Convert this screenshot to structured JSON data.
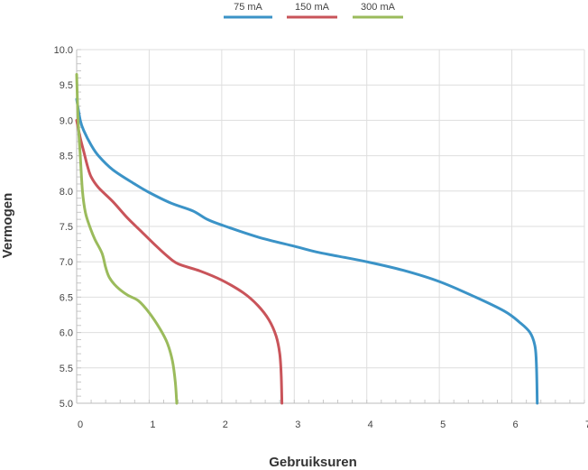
{
  "chart_data": {
    "type": "line",
    "title": "",
    "xlabel": "Gebruiksuren",
    "ylabel": "Vermogen",
    "xlim": [
      0,
      7
    ],
    "ylim": [
      5.0,
      10.0
    ],
    "x_ticks": [
      "0",
      "1",
      "2",
      "3",
      "4",
      "5",
      "6",
      "7"
    ],
    "y_ticks": [
      "5.0",
      "5.5",
      "6.0",
      "6.5",
      "7.0",
      "7.5",
      "8.0",
      "8.5",
      "9.0",
      "9.5",
      "10.0"
    ],
    "grid": true,
    "legend_position": "top-center",
    "series": [
      {
        "name": "75 mA",
        "color": "#3b93c7",
        "points": [
          [
            0,
            9.3
          ],
          [
            0.05,
            9.0
          ],
          [
            0.1,
            8.85
          ],
          [
            0.2,
            8.65
          ],
          [
            0.3,
            8.5
          ],
          [
            0.5,
            8.3
          ],
          [
            0.8,
            8.1
          ],
          [
            1.0,
            7.98
          ],
          [
            1.3,
            7.83
          ],
          [
            1.6,
            7.72
          ],
          [
            1.8,
            7.6
          ],
          [
            2.0,
            7.52
          ],
          [
            2.5,
            7.35
          ],
          [
            3.0,
            7.22
          ],
          [
            3.3,
            7.14
          ],
          [
            3.6,
            7.08
          ],
          [
            4.0,
            7.0
          ],
          [
            4.5,
            6.88
          ],
          [
            5.0,
            6.72
          ],
          [
            5.5,
            6.5
          ],
          [
            5.9,
            6.3
          ],
          [
            6.1,
            6.15
          ],
          [
            6.25,
            6.0
          ],
          [
            6.32,
            5.8
          ],
          [
            6.34,
            5.5
          ],
          [
            6.35,
            5.0
          ]
        ]
      },
      {
        "name": "150 mA",
        "color": "#c9545a",
        "points": [
          [
            0,
            9.0
          ],
          [
            0.05,
            8.75
          ],
          [
            0.1,
            8.55
          ],
          [
            0.15,
            8.35
          ],
          [
            0.2,
            8.2
          ],
          [
            0.3,
            8.05
          ],
          [
            0.5,
            7.85
          ],
          [
            0.7,
            7.62
          ],
          [
            0.9,
            7.42
          ],
          [
            1.1,
            7.22
          ],
          [
            1.25,
            7.08
          ],
          [
            1.4,
            6.97
          ],
          [
            1.7,
            6.87
          ],
          [
            2.0,
            6.74
          ],
          [
            2.3,
            6.56
          ],
          [
            2.5,
            6.38
          ],
          [
            2.65,
            6.18
          ],
          [
            2.75,
            5.95
          ],
          [
            2.8,
            5.7
          ],
          [
            2.82,
            5.4
          ],
          [
            2.83,
            5.0
          ]
        ]
      },
      {
        "name": "300 mA",
        "color": "#9bbb5c",
        "points": [
          [
            0,
            9.65
          ],
          [
            0.02,
            9.0
          ],
          [
            0.05,
            8.5
          ],
          [
            0.08,
            8.0
          ],
          [
            0.12,
            7.7
          ],
          [
            0.18,
            7.5
          ],
          [
            0.25,
            7.32
          ],
          [
            0.35,
            7.12
          ],
          [
            0.4,
            6.92
          ],
          [
            0.45,
            6.78
          ],
          [
            0.55,
            6.65
          ],
          [
            0.7,
            6.53
          ],
          [
            0.85,
            6.45
          ],
          [
            1.0,
            6.28
          ],
          [
            1.15,
            6.05
          ],
          [
            1.25,
            5.85
          ],
          [
            1.32,
            5.6
          ],
          [
            1.36,
            5.3
          ],
          [
            1.38,
            5.0
          ]
        ]
      }
    ]
  }
}
